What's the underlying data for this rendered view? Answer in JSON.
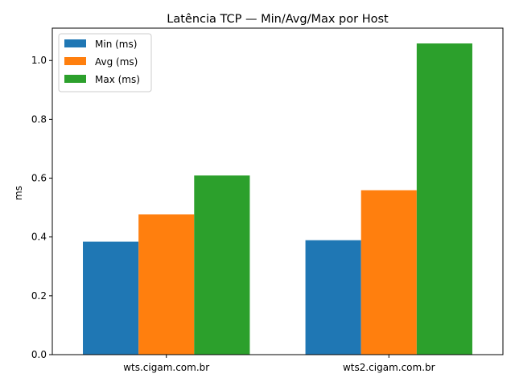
{
  "chart_data": {
    "type": "bar",
    "title": "Latência TCP — Min/Avg/Max por Host",
    "xlabel": "",
    "ylabel": "ms",
    "categories": [
      "wts.cigam.com.br",
      "wts2.cigam.com.br"
    ],
    "series": [
      {
        "name": "Min (ms)",
        "color": "#1f77b4",
        "values": [
          0.384,
          0.389
        ]
      },
      {
        "name": "Avg (ms)",
        "color": "#ff7f0e",
        "values": [
          0.477,
          0.559
        ]
      },
      {
        "name": "Max (ms)",
        "color": "#2ca02c",
        "values": [
          0.609,
          1.058
        ]
      }
    ],
    "ylim": [
      0,
      1.11
    ],
    "yticks": [
      0.0,
      0.2,
      0.4,
      0.6,
      0.8,
      1.0
    ],
    "ytick_labels": [
      "0.0",
      "0.2",
      "0.4",
      "0.6",
      "0.8",
      "1.0"
    ],
    "grid": false,
    "legend_position": "top-left"
  }
}
